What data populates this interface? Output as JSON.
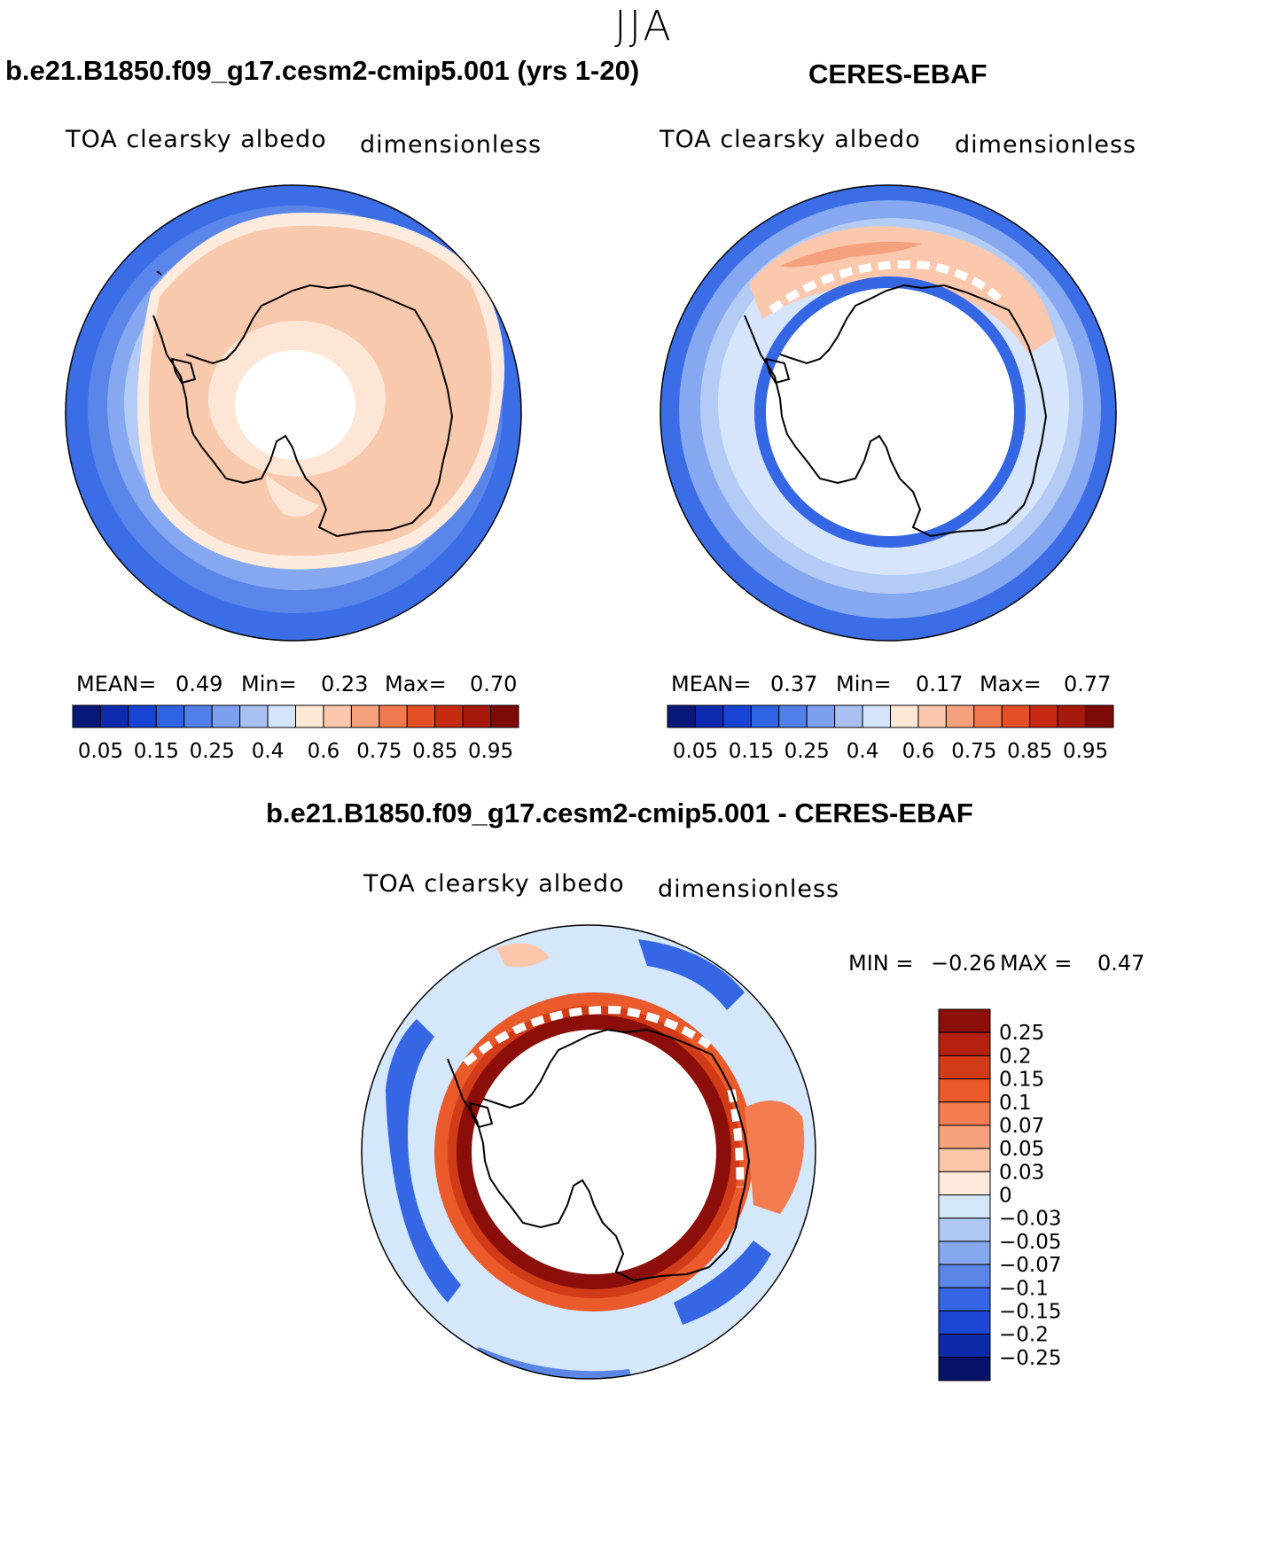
{
  "season": "JJA",
  "panels": {
    "model": {
      "title": "b.e21.B1850.f09_g17.cesm2-cmip5.001 (yrs 1-20)",
      "variable": "TOA clearsky albedo",
      "units": "dimensionless",
      "mean_label": "MEAN=",
      "mean": "0.49",
      "min_label": "Min=",
      "min": "0.23",
      "max_label": "Max=",
      "max": "0.70"
    },
    "obs": {
      "title": "CERES-EBAF",
      "variable": "TOA clearsky albedo",
      "units": "dimensionless",
      "mean_label": "MEAN=",
      "mean": "0.37",
      "min_label": "Min=",
      "min": "0.17",
      "max_label": "Max=",
      "max": "0.77"
    },
    "diff": {
      "title": "b.e21.B1850.f09_g17.cesm2-cmip5.001 - CERES-EBAF",
      "variable": "TOA clearsky albedo",
      "units": "dimensionless",
      "min_label": "MIN =",
      "min": "−0.26",
      "max_label": "MAX =",
      "max": "0.47"
    }
  },
  "abs_colorbar": {
    "labels": [
      "0.05",
      "0.15",
      "0.25",
      "0.4",
      "0.6",
      "0.75",
      "0.85",
      "0.95"
    ],
    "colors": [
      "#08177a",
      "#0d2ab0",
      "#1844d6",
      "#2e63e6",
      "#527fe8",
      "#7d9ff0",
      "#a9c0f2",
      "#d3e4fb",
      "#fde8d8",
      "#fbc8ae",
      "#f5a17e",
      "#f07a50",
      "#e54f26",
      "#c72a12",
      "#a7190b",
      "#7d0a06"
    ]
  },
  "diff_colorbar": {
    "labels": [
      "0.25",
      "0.2",
      "0.15",
      "0.1",
      "0.07",
      "0.05",
      "0.03",
      "0",
      "−0.03",
      "−0.05",
      "−0.07",
      "−0.1",
      "−0.15",
      "−0.2",
      "−0.25"
    ],
    "colors": [
      "#8b0e0a",
      "#b4210f",
      "#d13b17",
      "#ea5a2a",
      "#f37d50",
      "#f7a17c",
      "#fbc7ab",
      "#fde9db",
      "#d5e7fb",
      "#aec8f3",
      "#86a8ee",
      "#5b86e6",
      "#3566e3",
      "#1c47d4",
      "#0e2aa8",
      "#06126a"
    ]
  }
}
